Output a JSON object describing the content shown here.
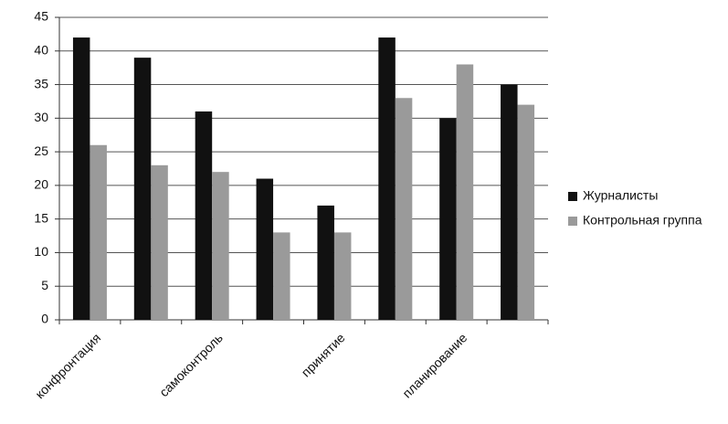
{
  "chart_data": {
    "type": "bar",
    "categories": [
      "конфронтация",
      null,
      "самоконтроль",
      null,
      "принятие",
      null,
      "планирование",
      null
    ],
    "series": [
      {
        "name": "Журналисты",
        "color": "#111111",
        "values": [
          42,
          39,
          31,
          21,
          17,
          42,
          30,
          35
        ]
      },
      {
        "name": "Контрольная группа",
        "color": "#9a9a9a",
        "values": [
          26,
          23,
          22,
          13,
          13,
          33,
          38,
          32
        ]
      }
    ],
    "ylim": [
      0,
      45
    ],
    "yticks": [
      0,
      5,
      10,
      15,
      20,
      25,
      30,
      35,
      40,
      45
    ],
    "grid": true,
    "legend": "right"
  }
}
